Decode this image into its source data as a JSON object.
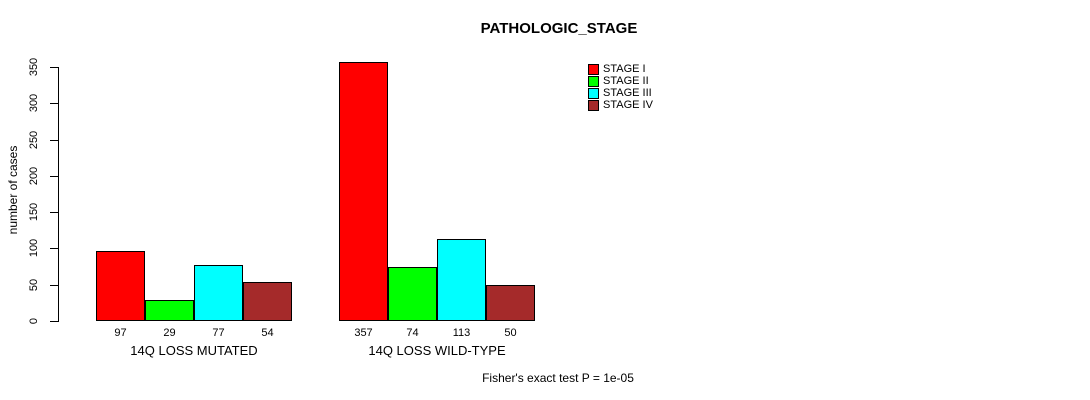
{
  "chart_data": {
    "type": "bar",
    "title": "PATHOLOGIC_STAGE",
    "xlabel": "",
    "ylabel": "number of cases",
    "ylim": [
      0,
      350
    ],
    "yticks": [
      0,
      50,
      100,
      150,
      200,
      250,
      300,
      350
    ],
    "grid": false,
    "bar_value_labels_shown": true,
    "categories": [
      "14Q LOSS MUTATED",
      "14Q LOSS WILD-TYPE"
    ],
    "series": [
      {
        "name": "STAGE I",
        "color": "#ff0000",
        "values": [
          97,
          357
        ]
      },
      {
        "name": "STAGE II",
        "color": "#00ff00",
        "values": [
          29,
          74
        ]
      },
      {
        "name": "STAGE III",
        "color": "#00ffff",
        "values": [
          77,
          113
        ]
      },
      {
        "name": "STAGE IV",
        "color": "#a52a2a",
        "values": [
          54,
          50
        ]
      }
    ],
    "legend": {
      "position": "top-right",
      "entries": [
        "STAGE I",
        "STAGE II",
        "STAGE III",
        "STAGE IV"
      ]
    },
    "annotation": "Fisher's exact test P = 1e-05"
  },
  "colors": {
    "background": "#ffffff",
    "axis": "#000000",
    "text": "#000000",
    "bar_border": "#000000"
  }
}
